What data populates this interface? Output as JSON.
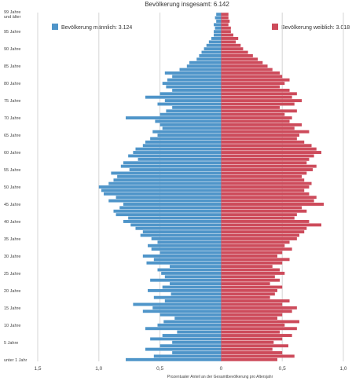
{
  "chart_data": {
    "type": "bar",
    "orientation": "horizontal-population-pyramid",
    "title": "Bevölkerung insgesamt: 6.142",
    "xlabel": "Prozentualer Anteil an der Gesamtbevölkerung pro Altersjahr",
    "ylabel": "",
    "xlim": [
      -1.5,
      1.0
    ],
    "x_tick_values": [
      -1.5,
      -1.0,
      -0.5,
      0,
      0.5,
      1.0
    ],
    "x_tick_labels": [
      "1,5",
      "1,0",
      "0,5",
      "0",
      "0,5",
      "1,0"
    ],
    "y_tick_ages": [
      100,
      95,
      90,
      85,
      80,
      75,
      70,
      65,
      60,
      55,
      50,
      45,
      40,
      35,
      30,
      25,
      20,
      15,
      10,
      5,
      0
    ],
    "y_tick_labels": [
      "99 Jahre und älter",
      "95 Jahre",
      "90 Jahre",
      "85 Jahre",
      "80 Jahre",
      "75 Jahre",
      "70 Jahre",
      "65 Jahre",
      "60 Jahre",
      "55 Jahre",
      "50 Jahre",
      "45 Jahre",
      "40 Jahre",
      "35 Jahre",
      "30 Jahre",
      "25 Jahre",
      "20 Jahre",
      "15 Jahre",
      "10 Jahre",
      "5 Jahre",
      "unter 1 Jahr"
    ],
    "grid": true,
    "legend_placement": "top",
    "ages": [
      0,
      1,
      2,
      3,
      4,
      5,
      6,
      7,
      8,
      9,
      10,
      11,
      12,
      13,
      14,
      15,
      16,
      17,
      18,
      19,
      20,
      21,
      22,
      23,
      24,
      25,
      26,
      27,
      28,
      29,
      30,
      31,
      32,
      33,
      34,
      35,
      36,
      37,
      38,
      39,
      40,
      41,
      42,
      43,
      44,
      45,
      46,
      47,
      48,
      49,
      50,
      51,
      52,
      53,
      54,
      55,
      56,
      57,
      58,
      59,
      60,
      61,
      62,
      63,
      64,
      65,
      66,
      67,
      68,
      69,
      70,
      71,
      72,
      73,
      74,
      75,
      76,
      77,
      78,
      79,
      80,
      81,
      82,
      83,
      84,
      85,
      86,
      87,
      88,
      89,
      90,
      91,
      92,
      93,
      94,
      95,
      96,
      97,
      98,
      99,
      100
    ],
    "series": [
      {
        "name": "Bevölkerung männlich: 3.124",
        "color": "#4f95c9",
        "side": "left",
        "values": [
          0.78,
          0.55,
          0.4,
          0.62,
          0.5,
          0.4,
          0.58,
          0.48,
          0.36,
          0.62,
          0.52,
          0.47,
          0.38,
          0.5,
          0.64,
          0.56,
          0.72,
          0.46,
          0.55,
          0.41,
          0.6,
          0.48,
          0.42,
          0.58,
          0.46,
          0.49,
          0.52,
          0.42,
          0.61,
          0.55,
          0.64,
          0.5,
          0.57,
          0.6,
          0.52,
          0.57,
          0.66,
          0.64,
          0.7,
          0.74,
          0.8,
          0.76,
          0.86,
          0.88,
          0.83,
          0.8,
          0.92,
          0.86,
          0.96,
          0.98,
          1.0,
          0.92,
          0.88,
          0.85,
          0.9,
          0.75,
          0.82,
          0.8,
          0.68,
          0.76,
          0.72,
          0.7,
          0.64,
          0.62,
          0.58,
          0.52,
          0.56,
          0.48,
          0.5,
          0.54,
          0.78,
          0.5,
          0.45,
          0.4,
          0.52,
          0.46,
          0.62,
          0.5,
          0.4,
          0.45,
          0.48,
          0.44,
          0.4,
          0.46,
          0.34,
          0.28,
          0.26,
          0.2,
          0.18,
          0.16,
          0.14,
          0.12,
          0.1,
          0.08,
          0.06,
          0.06,
          0.05,
          0.06,
          0.04,
          0.05,
          0.04
        ]
      },
      {
        "name": "Bevölkerung weiblich: 3.018",
        "color": "#cd4b5b",
        "side": "right",
        "values": [
          0.46,
          0.6,
          0.5,
          0.42,
          0.55,
          0.43,
          0.5,
          0.58,
          0.48,
          0.62,
          0.52,
          0.64,
          0.46,
          0.5,
          0.58,
          0.62,
          0.5,
          0.56,
          0.4,
          0.44,
          0.46,
          0.5,
          0.4,
          0.48,
          0.44,
          0.52,
          0.48,
          0.42,
          0.5,
          0.56,
          0.46,
          0.5,
          0.58,
          0.52,
          0.56,
          0.62,
          0.64,
          0.68,
          0.7,
          0.82,
          0.72,
          0.6,
          0.62,
          0.7,
          0.66,
          0.84,
          0.76,
          0.78,
          0.72,
          0.68,
          0.72,
          0.74,
          0.68,
          0.66,
          0.7,
          0.75,
          0.78,
          0.7,
          0.72,
          0.76,
          0.82,
          0.78,
          0.74,
          0.68,
          0.62,
          0.64,
          0.72,
          0.6,
          0.66,
          0.56,
          0.58,
          0.52,
          0.62,
          0.48,
          0.6,
          0.66,
          0.58,
          0.62,
          0.56,
          0.48,
          0.52,
          0.56,
          0.5,
          0.48,
          0.42,
          0.38,
          0.34,
          0.3,
          0.26,
          0.22,
          0.18,
          0.16,
          0.12,
          0.14,
          0.1,
          0.08,
          0.08,
          0.06,
          0.07,
          0.06,
          0.06
        ]
      }
    ]
  }
}
